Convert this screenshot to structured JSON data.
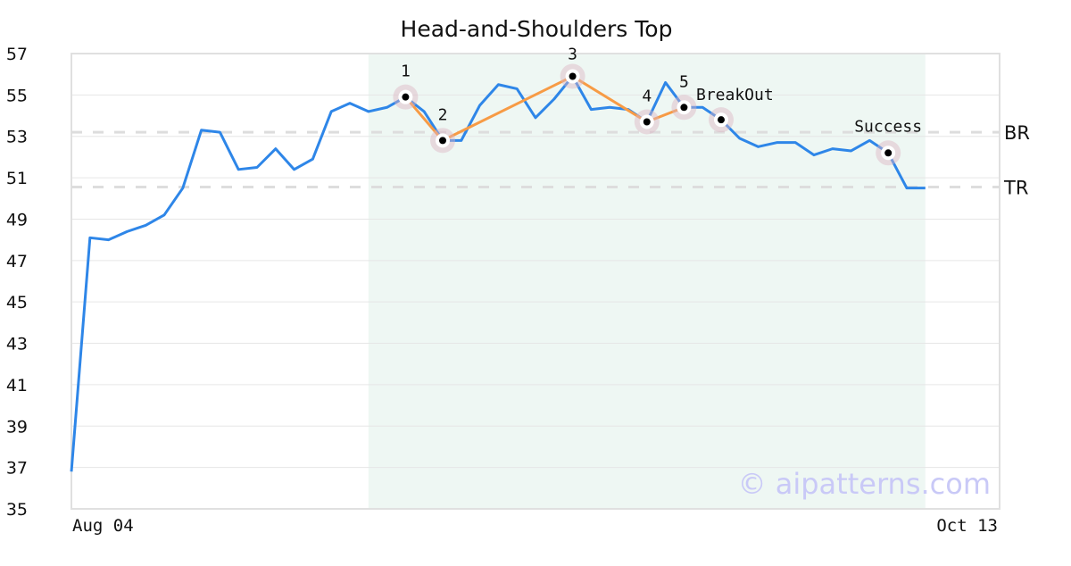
{
  "chart_data": {
    "type": "line",
    "title": "Head-and-Shoulders Top",
    "xlabel": "",
    "ylabel": "",
    "x_tick_labels": [
      {
        "index": 0,
        "label": "Aug 04"
      },
      {
        "index": 50,
        "label": "Oct 13"
      }
    ],
    "xlim": [
      0,
      50
    ],
    "ylim": [
      35,
      57
    ],
    "y_ticks": [
      35,
      37,
      39,
      41,
      43,
      45,
      47,
      49,
      51,
      53,
      55,
      57
    ],
    "grid": true,
    "series": [
      {
        "color": "#2e86e8",
        "values": [
          36.8,
          48.1,
          48.0,
          48.4,
          48.7,
          49.2,
          50.5,
          53.3,
          53.2,
          51.4,
          51.5,
          52.4,
          51.4,
          51.9,
          54.2,
          54.6,
          54.2,
          54.4,
          54.9,
          54.2,
          52.8,
          52.8,
          54.5,
          55.5,
          55.3,
          53.9,
          54.8,
          55.9,
          54.3,
          54.4,
          54.3,
          53.7,
          55.6,
          54.4,
          54.4,
          53.8,
          52.9,
          52.5,
          52.7,
          52.7,
          52.1,
          52.4,
          52.3,
          52.8,
          52.2,
          50.5,
          50.5
        ]
      }
    ],
    "pattern_region": {
      "start_index": 16,
      "end_index": 46,
      "color": "#eef7f3"
    },
    "pattern_line_color": "#f79b45",
    "pattern_points": [
      {
        "label": "1",
        "index": 18,
        "value": 54.9
      },
      {
        "label": "2",
        "index": 20,
        "value": 52.8
      },
      {
        "label": "3",
        "index": 27,
        "value": 55.9
      },
      {
        "label": "4",
        "index": 31,
        "value": 53.7
      },
      {
        "label": "5",
        "index": 33,
        "value": 54.4
      }
    ],
    "event_points": [
      {
        "label": "BreakOut",
        "index": 35,
        "value": 53.8
      },
      {
        "label": "Success",
        "index": 44,
        "value": 52.2
      }
    ],
    "reference_lines": [
      {
        "label": "BR",
        "value": 53.2
      },
      {
        "label": "TR",
        "value": 50.55
      }
    ],
    "watermark": "© aipatterns.com"
  }
}
